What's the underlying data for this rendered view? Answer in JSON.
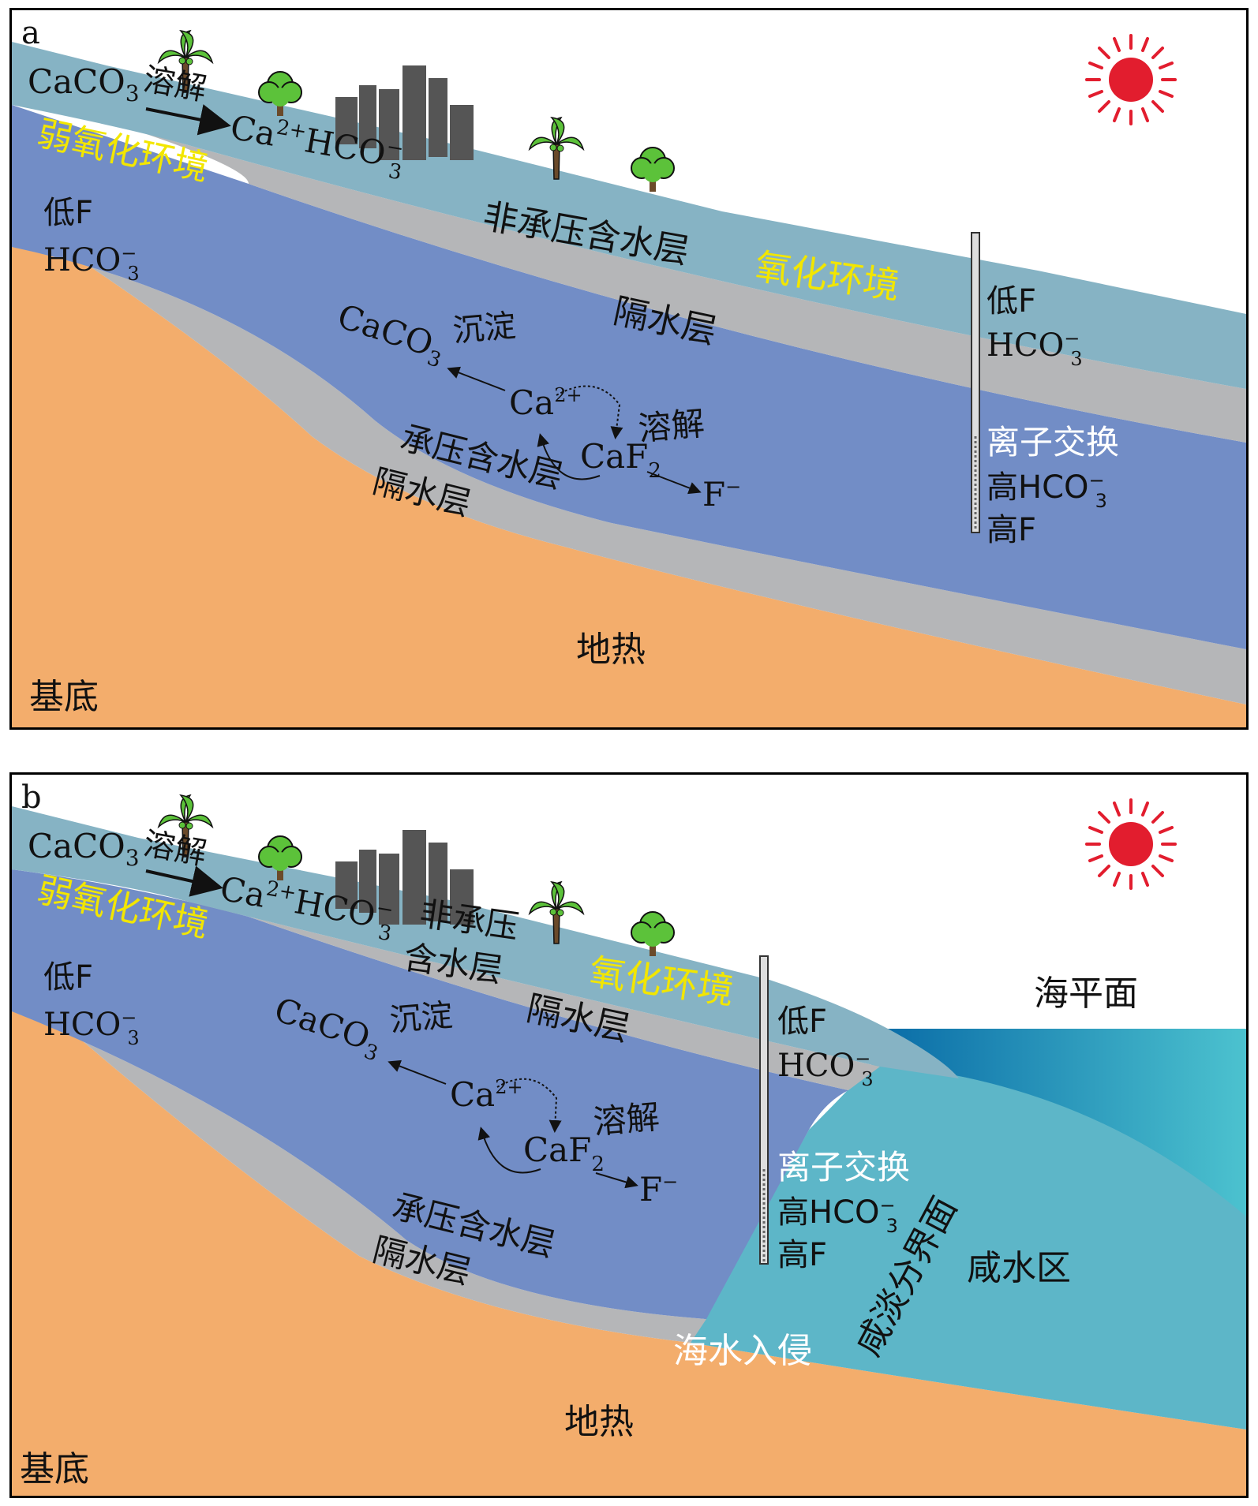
{
  "colors": {
    "shallow_aquifer": "#86b3c4",
    "confined_aquifer": "#728dc6",
    "aquitard": "#b5b6b8",
    "basement": "#f3ad6c",
    "sea": "#3aa6c2",
    "saline_zone": "#5db6c8",
    "sun": "#e21d2e",
    "oxidation_text": "#f2e600",
    "building": "#555555",
    "tree": "#5cc23a"
  },
  "panel_a": {
    "letter": "a",
    "reaction_top": {
      "reactant": "CaCO",
      "reactant_sub": "3",
      "process": "溶解",
      "product_ca": "Ca",
      "product_ca_sup": "2+",
      "product_hco": "HCO",
      "product_hco_sub": "3",
      "product_hco_sup": "−"
    },
    "weak_oxidation": "弱氧化环境",
    "left_low_f": "低F",
    "left_hco": "HCO",
    "left_hco_sub": "3",
    "left_hco_sup": "−",
    "unconfined_aquifer": "非承压含水层",
    "oxidation": "氧化环境",
    "aquitard_upper": "隔水层",
    "precip_product": "CaCO",
    "precip_product_sub": "3",
    "precip_label": "沉淀",
    "ca_ion": "Ca",
    "ca_ion_sup": "2+",
    "caf": "CaF",
    "caf_sub": "2",
    "dissolve_label": "溶解",
    "f_ion": "F",
    "f_ion_sup": "−",
    "confined_aquifer": "承压含水层",
    "aquitard_lower": "隔水层",
    "well_low_f": "低F",
    "well_hco": "HCO",
    "well_hco_sub": "3",
    "well_hco_sup": "−",
    "ion_exchange": "离子交换",
    "high_hco": "高HCO",
    "high_hco_sub": "3",
    "high_hco_sup": "−",
    "high_f": "高F",
    "geothermal": "地热",
    "basement": "基底"
  },
  "panel_b": {
    "letter": "b",
    "reaction_top": {
      "reactant": "CaCO",
      "reactant_sub": "3",
      "process": "溶解",
      "product_ca": "Ca",
      "product_ca_sup": "2+",
      "product_hco": "HCO",
      "product_hco_sub": "3",
      "product_hco_sup": "−"
    },
    "weak_oxidation": "弱氧化环境",
    "left_low_f": "低F",
    "left_hco": "HCO",
    "left_hco_sub": "3",
    "left_hco_sup": "−",
    "unconfined_line1": "非承压",
    "unconfined_line2": "含水层",
    "oxidation": "氧化环境",
    "aquitard_upper": "隔水层",
    "precip_product": "CaCO",
    "precip_product_sub": "3",
    "precip_label": "沉淀",
    "ca_ion": "Ca",
    "ca_ion_sup": "2+",
    "caf": "CaF",
    "caf_sub": "2",
    "dissolve_label": "溶解",
    "f_ion": "F",
    "f_ion_sup": "−",
    "confined_aquifer": "承压含水层",
    "aquitard_lower": "隔水层",
    "well_low_f": "低F",
    "well_hco": "HCO",
    "well_hco_sub": "3",
    "well_hco_sup": "−",
    "ion_exchange": "离子交换",
    "high_hco": "高HCO",
    "high_hco_sub": "3",
    "high_hco_sup": "−",
    "high_f": "高F",
    "sea_level": "海平面",
    "saline_zone": "咸水区",
    "interface": "咸淡分界面",
    "seawater_intrusion": "海水入侵",
    "geothermal": "地热",
    "basement": "基底"
  }
}
